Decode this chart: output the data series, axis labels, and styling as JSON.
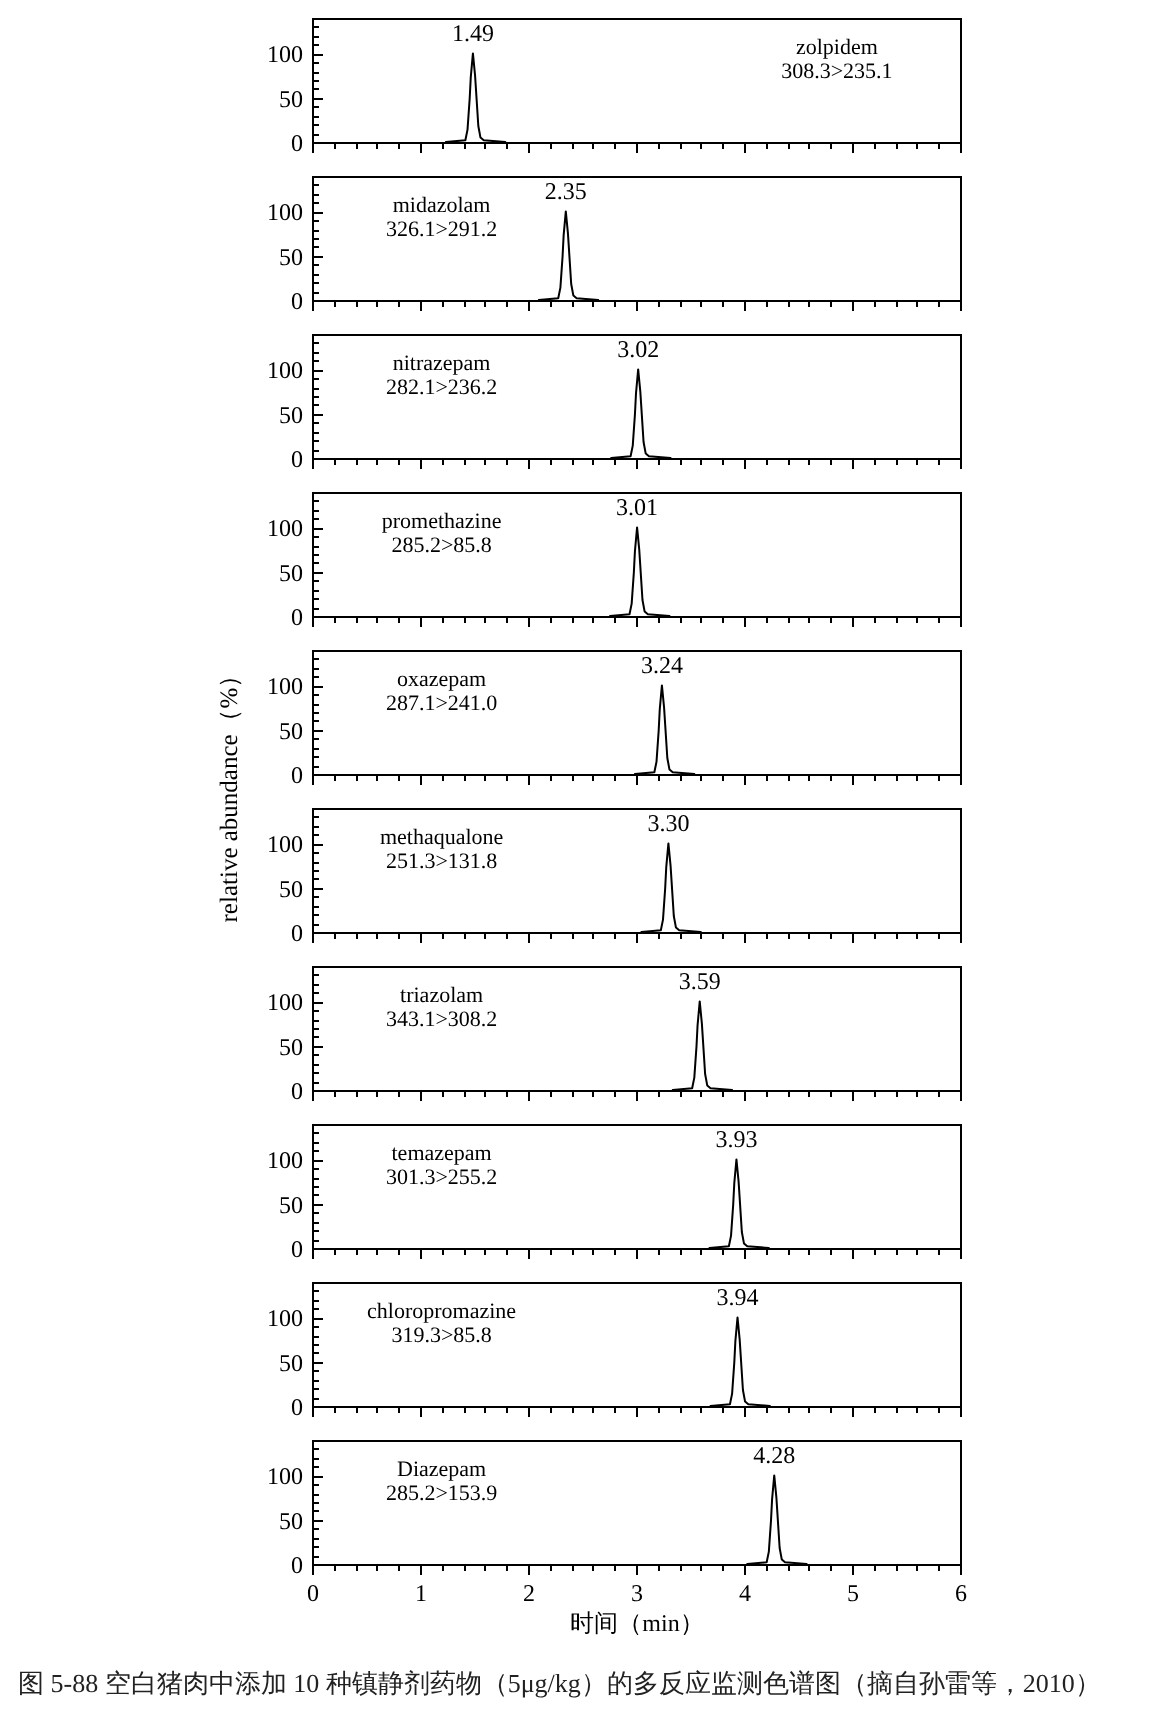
{
  "chart_data": [
    {
      "type": "line",
      "x": [
        1.24,
        1.42,
        1.44,
        1.46,
        1.47,
        1.49,
        1.51,
        1.52,
        1.54,
        1.56,
        1.59,
        1.79
      ],
      "series": [
        {
          "name": "zolpidem 308.3>235.1",
          "color": "#000000",
          "values": [
            0,
            2,
            14,
            49,
            73,
            100,
            75,
            56,
            18,
            5,
            2,
            0
          ]
        }
      ],
      "xlim": [
        0,
        6
      ],
      "ylim": [
        0,
        140
      ],
      "xticks": [
        0,
        {
          "value": 0.2,
          "label": null
        },
        {
          "value": 0.4,
          "label": null
        },
        {
          "value": 0.6,
          "label": null
        },
        {
          "value": 0.8,
          "label": null
        },
        1,
        {
          "value": 1.2,
          "label": null
        },
        {
          "value": 1.4,
          "label": null
        },
        {
          "value": 1.6,
          "label": null
        },
        {
          "value": 1.8,
          "label": null
        },
        2,
        {
          "value": 2.2,
          "label": null
        },
        {
          "value": 2.4,
          "label": null
        },
        {
          "value": 2.6,
          "label": null
        },
        {
          "value": 2.8,
          "label": null
        },
        3,
        {
          "value": 3.2,
          "label": null
        },
        {
          "value": 3.4,
          "label": null
        },
        {
          "value": 3.6,
          "label": null
        },
        {
          "value": 3.8,
          "label": null
        },
        4,
        {
          "value": 4.2,
          "label": null
        },
        {
          "value": 4.4,
          "label": null
        },
        {
          "value": 4.6,
          "label": null
        },
        {
          "value": 4.8,
          "label": null
        },
        5,
        {
          "value": 5.2,
          "label": null
        },
        {
          "value": 5.4,
          "label": null
        },
        {
          "value": 5.6,
          "label": null
        },
        {
          "value": 5.8,
          "label": null
        },
        6
      ],
      "yticks": [
        0,
        {
          "value": 10,
          "label": null
        },
        {
          "value": 20,
          "label": null
        },
        {
          "value": 30,
          "label": null
        },
        {
          "value": 40,
          "label": null
        },
        50,
        {
          "value": 60,
          "label": null
        },
        {
          "value": 70,
          "label": null
        },
        {
          "value": 80,
          "label": null
        },
        {
          "value": 90,
          "label": null
        },
        100,
        {
          "value": 110,
          "label": null
        },
        {
          "value": 120,
          "label": null
        },
        {
          "value": 130,
          "label": null
        }
      ],
      "tick_labels": "y",
      "legend": "top right",
      "annotations": [
        {
          "text": "1.49",
          "x": 1.49,
          "y": 100
        }
      ]
    },
    {
      "type": "line",
      "x": [
        2.1,
        2.28,
        2.3,
        2.32,
        2.33,
        2.35,
        2.37,
        2.38,
        2.4,
        2.42,
        2.45,
        2.65
      ],
      "series": [
        {
          "name": "midazolam 326.1>291.2",
          "color": "#000000",
          "values": [
            0,
            2,
            14,
            49,
            73,
            100,
            75,
            56,
            18,
            5,
            2,
            0
          ]
        }
      ],
      "xlim": [
        0,
        6
      ],
      "ylim": [
        0,
        140
      ],
      "xticks": [
        0,
        {
          "value": 0.2,
          "label": null
        },
        {
          "value": 0.4,
          "label": null
        },
        {
          "value": 0.6,
          "label": null
        },
        {
          "value": 0.8,
          "label": null
        },
        1,
        {
          "value": 1.2,
          "label": null
        },
        {
          "value": 1.4,
          "label": null
        },
        {
          "value": 1.6,
          "label": null
        },
        {
          "value": 1.8,
          "label": null
        },
        2,
        {
          "value": 2.2,
          "label": null
        },
        {
          "value": 2.4,
          "label": null
        },
        {
          "value": 2.6,
          "label": null
        },
        {
          "value": 2.8,
          "label": null
        },
        3,
        {
          "value": 3.2,
          "label": null
        },
        {
          "value": 3.4,
          "label": null
        },
        {
          "value": 3.6,
          "label": null
        },
        {
          "value": 3.8,
          "label": null
        },
        4,
        {
          "value": 4.2,
          "label": null
        },
        {
          "value": 4.4,
          "label": null
        },
        {
          "value": 4.6,
          "label": null
        },
        {
          "value": 4.8,
          "label": null
        },
        5,
        {
          "value": 5.2,
          "label": null
        },
        {
          "value": 5.4,
          "label": null
        },
        {
          "value": 5.6,
          "label": null
        },
        {
          "value": 5.8,
          "label": null
        },
        6
      ],
      "yticks": [
        0,
        {
          "value": 10,
          "label": null
        },
        {
          "value": 20,
          "label": null
        },
        {
          "value": 30,
          "label": null
        },
        {
          "value": 40,
          "label": null
        },
        50,
        {
          "value": 60,
          "label": null
        },
        {
          "value": 70,
          "label": null
        },
        {
          "value": 80,
          "label": null
        },
        {
          "value": 90,
          "label": null
        },
        100,
        {
          "value": 110,
          "label": null
        },
        {
          "value": 120,
          "label": null
        },
        {
          "value": 130,
          "label": null
        }
      ],
      "tick_labels": "y",
      "legend": "top left",
      "annotations": [
        {
          "text": "2.35",
          "x": 2.35,
          "y": 100
        }
      ]
    },
    {
      "type": "line",
      "x": [
        2.77,
        2.95,
        2.97,
        2.99,
        3.0,
        3.02,
        3.04,
        3.05,
        3.07,
        3.09,
        3.12,
        3.32
      ],
      "series": [
        {
          "name": "nitrazepam 282.1>236.2",
          "color": "#000000",
          "values": [
            0,
            2,
            14,
            49,
            73,
            100,
            75,
            56,
            18,
            5,
            2,
            0
          ]
        }
      ],
      "xlim": [
        0,
        6
      ],
      "ylim": [
        0,
        140
      ],
      "xticks": [
        0,
        {
          "value": 0.2,
          "label": null
        },
        {
          "value": 0.4,
          "label": null
        },
        {
          "value": 0.6,
          "label": null
        },
        {
          "value": 0.8,
          "label": null
        },
        1,
        {
          "value": 1.2,
          "label": null
        },
        {
          "value": 1.4,
          "label": null
        },
        {
          "value": 1.6,
          "label": null
        },
        {
          "value": 1.8,
          "label": null
        },
        2,
        {
          "value": 2.2,
          "label": null
        },
        {
          "value": 2.4,
          "label": null
        },
        {
          "value": 2.6,
          "label": null
        },
        {
          "value": 2.8,
          "label": null
        },
        3,
        {
          "value": 3.2,
          "label": null
        },
        {
          "value": 3.4,
          "label": null
        },
        {
          "value": 3.6,
          "label": null
        },
        {
          "value": 3.8,
          "label": null
        },
        4,
        {
          "value": 4.2,
          "label": null
        },
        {
          "value": 4.4,
          "label": null
        },
        {
          "value": 4.6,
          "label": null
        },
        {
          "value": 4.8,
          "label": null
        },
        5,
        {
          "value": 5.2,
          "label": null
        },
        {
          "value": 5.4,
          "label": null
        },
        {
          "value": 5.6,
          "label": null
        },
        {
          "value": 5.8,
          "label": null
        },
        6
      ],
      "yticks": [
        0,
        {
          "value": 10,
          "label": null
        },
        {
          "value": 20,
          "label": null
        },
        {
          "value": 30,
          "label": null
        },
        {
          "value": 40,
          "label": null
        },
        50,
        {
          "value": 60,
          "label": null
        },
        {
          "value": 70,
          "label": null
        },
        {
          "value": 80,
          "label": null
        },
        {
          "value": 90,
          "label": null
        },
        100,
        {
          "value": 110,
          "label": null
        },
        {
          "value": 120,
          "label": null
        },
        {
          "value": 130,
          "label": null
        }
      ],
      "tick_labels": "y",
      "legend": "top left",
      "annotations": [
        {
          "text": "3.02",
          "x": 3.02,
          "y": 100
        }
      ]
    },
    {
      "type": "line",
      "x": [
        2.76,
        2.94,
        2.96,
        2.98,
        2.99,
        3.01,
        3.03,
        3.04,
        3.06,
        3.08,
        3.11,
        3.31
      ],
      "series": [
        {
          "name": "promethazine 285.2>85.8",
          "color": "#000000",
          "values": [
            0,
            2,
            14,
            49,
            73,
            100,
            75,
            56,
            18,
            5,
            2,
            0
          ]
        }
      ],
      "xlim": [
        0,
        6
      ],
      "ylim": [
        0,
        140
      ],
      "xticks": [
        0,
        {
          "value": 0.2,
          "label": null
        },
        {
          "value": 0.4,
          "label": null
        },
        {
          "value": 0.6,
          "label": null
        },
        {
          "value": 0.8,
          "label": null
        },
        1,
        {
          "value": 1.2,
          "label": null
        },
        {
          "value": 1.4,
          "label": null
        },
        {
          "value": 1.6,
          "label": null
        },
        {
          "value": 1.8,
          "label": null
        },
        2,
        {
          "value": 2.2,
          "label": null
        },
        {
          "value": 2.4,
          "label": null
        },
        {
          "value": 2.6,
          "label": null
        },
        {
          "value": 2.8,
          "label": null
        },
        3,
        {
          "value": 3.2,
          "label": null
        },
        {
          "value": 3.4,
          "label": null
        },
        {
          "value": 3.6,
          "label": null
        },
        {
          "value": 3.8,
          "label": null
        },
        4,
        {
          "value": 4.2,
          "label": null
        },
        {
          "value": 4.4,
          "label": null
        },
        {
          "value": 4.6,
          "label": null
        },
        {
          "value": 4.8,
          "label": null
        },
        5,
        {
          "value": 5.2,
          "label": null
        },
        {
          "value": 5.4,
          "label": null
        },
        {
          "value": 5.6,
          "label": null
        },
        {
          "value": 5.8,
          "label": null
        },
        6
      ],
      "yticks": [
        0,
        {
          "value": 10,
          "label": null
        },
        {
          "value": 20,
          "label": null
        },
        {
          "value": 30,
          "label": null
        },
        {
          "value": 40,
          "label": null
        },
        50,
        {
          "value": 60,
          "label": null
        },
        {
          "value": 70,
          "label": null
        },
        {
          "value": 80,
          "label": null
        },
        {
          "value": 90,
          "label": null
        },
        100,
        {
          "value": 110,
          "label": null
        },
        {
          "value": 120,
          "label": null
        },
        {
          "value": 130,
          "label": null
        }
      ],
      "tick_labels": "y",
      "legend": "top left",
      "annotations": [
        {
          "text": "3.01",
          "x": 3.01,
          "y": 100
        }
      ]
    },
    {
      "type": "line",
      "x": [
        2.99,
        3.17,
        3.19,
        3.21,
        3.22,
        3.24,
        3.26,
        3.27,
        3.29,
        3.31,
        3.34,
        3.54
      ],
      "series": [
        {
          "name": "oxazepam 287.1>241.0",
          "color": "#000000",
          "values": [
            0,
            2,
            14,
            49,
            73,
            100,
            75,
            56,
            18,
            5,
            2,
            0
          ]
        }
      ],
      "xlim": [
        0,
        6
      ],
      "ylim": [
        0,
        140
      ],
      "xticks": [
        0,
        {
          "value": 0.2,
          "label": null
        },
        {
          "value": 0.4,
          "label": null
        },
        {
          "value": 0.6,
          "label": null
        },
        {
          "value": 0.8,
          "label": null
        },
        1,
        {
          "value": 1.2,
          "label": null
        },
        {
          "value": 1.4,
          "label": null
        },
        {
          "value": 1.6,
          "label": null
        },
        {
          "value": 1.8,
          "label": null
        },
        2,
        {
          "value": 2.2,
          "label": null
        },
        {
          "value": 2.4,
          "label": null
        },
        {
          "value": 2.6,
          "label": null
        },
        {
          "value": 2.8,
          "label": null
        },
        3,
        {
          "value": 3.2,
          "label": null
        },
        {
          "value": 3.4,
          "label": null
        },
        {
          "value": 3.6,
          "label": null
        },
        {
          "value": 3.8,
          "label": null
        },
        4,
        {
          "value": 4.2,
          "label": null
        },
        {
          "value": 4.4,
          "label": null
        },
        {
          "value": 4.6,
          "label": null
        },
        {
          "value": 4.8,
          "label": null
        },
        5,
        {
          "value": 5.2,
          "label": null
        },
        {
          "value": 5.4,
          "label": null
        },
        {
          "value": 5.6,
          "label": null
        },
        {
          "value": 5.8,
          "label": null
        },
        6
      ],
      "yticks": [
        0,
        {
          "value": 10,
          "label": null
        },
        {
          "value": 20,
          "label": null
        },
        {
          "value": 30,
          "label": null
        },
        {
          "value": 40,
          "label": null
        },
        50,
        {
          "value": 60,
          "label": null
        },
        {
          "value": 70,
          "label": null
        },
        {
          "value": 80,
          "label": null
        },
        {
          "value": 90,
          "label": null
        },
        100,
        {
          "value": 110,
          "label": null
        },
        {
          "value": 120,
          "label": null
        },
        {
          "value": 130,
          "label": null
        }
      ],
      "tick_labels": "y",
      "legend": "top left",
      "ylabel": "relative abundance（%）",
      "annotations": [
        {
          "text": "3.24",
          "x": 3.24,
          "y": 100
        }
      ]
    },
    {
      "type": "line",
      "x": [
        3.05,
        3.23,
        3.25,
        3.27,
        3.28,
        3.3,
        3.32,
        3.33,
        3.35,
        3.37,
        3.4,
        3.6
      ],
      "series": [
        {
          "name": "methaqualone 251.3>131.8",
          "color": "#000000",
          "values": [
            0,
            2,
            14,
            49,
            73,
            100,
            75,
            56,
            18,
            5,
            2,
            0
          ]
        }
      ],
      "xlim": [
        0,
        6
      ],
      "ylim": [
        0,
        140
      ],
      "xticks": [
        0,
        {
          "value": 0.2,
          "label": null
        },
        {
          "value": 0.4,
          "label": null
        },
        {
          "value": 0.6,
          "label": null
        },
        {
          "value": 0.8,
          "label": null
        },
        1,
        {
          "value": 1.2,
          "label": null
        },
        {
          "value": 1.4,
          "label": null
        },
        {
          "value": 1.6,
          "label": null
        },
        {
          "value": 1.8,
          "label": null
        },
        2,
        {
          "value": 2.2,
          "label": null
        },
        {
          "value": 2.4,
          "label": null
        },
        {
          "value": 2.6,
          "label": null
        },
        {
          "value": 2.8,
          "label": null
        },
        3,
        {
          "value": 3.2,
          "label": null
        },
        {
          "value": 3.4,
          "label": null
        },
        {
          "value": 3.6,
          "label": null
        },
        {
          "value": 3.8,
          "label": null
        },
        4,
        {
          "value": 4.2,
          "label": null
        },
        {
          "value": 4.4,
          "label": null
        },
        {
          "value": 4.6,
          "label": null
        },
        {
          "value": 4.8,
          "label": null
        },
        5,
        {
          "value": 5.2,
          "label": null
        },
        {
          "value": 5.4,
          "label": null
        },
        {
          "value": 5.6,
          "label": null
        },
        {
          "value": 5.8,
          "label": null
        },
        6
      ],
      "yticks": [
        0,
        {
          "value": 10,
          "label": null
        },
        {
          "value": 20,
          "label": null
        },
        {
          "value": 30,
          "label": null
        },
        {
          "value": 40,
          "label": null
        },
        50,
        {
          "value": 60,
          "label": null
        },
        {
          "value": 70,
          "label": null
        },
        {
          "value": 80,
          "label": null
        },
        {
          "value": 90,
          "label": null
        },
        100,
        {
          "value": 110,
          "label": null
        },
        {
          "value": 120,
          "label": null
        },
        {
          "value": 130,
          "label": null
        }
      ],
      "tick_labels": "y",
      "legend": "top left",
      "annotations": [
        {
          "text": "3.30",
          "x": 3.3,
          "y": 100
        }
      ]
    },
    {
      "type": "line",
      "x": [
        3.34,
        3.52,
        3.54,
        3.56,
        3.57,
        3.59,
        3.61,
        3.62,
        3.64,
        3.66,
        3.69,
        3.89
      ],
      "series": [
        {
          "name": "triazolam 343.1>308.2",
          "color": "#000000",
          "values": [
            0,
            2,
            14,
            49,
            73,
            100,
            75,
            56,
            18,
            5,
            2,
            0
          ]
        }
      ],
      "xlim": [
        0,
        6
      ],
      "ylim": [
        0,
        140
      ],
      "xticks": [
        0,
        {
          "value": 0.2,
          "label": null
        },
        {
          "value": 0.4,
          "label": null
        },
        {
          "value": 0.6,
          "label": null
        },
        {
          "value": 0.8,
          "label": null
        },
        1,
        {
          "value": 1.2,
          "label": null
        },
        {
          "value": 1.4,
          "label": null
        },
        {
          "value": 1.6,
          "label": null
        },
        {
          "value": 1.8,
          "label": null
        },
        2,
        {
          "value": 2.2,
          "label": null
        },
        {
          "value": 2.4,
          "label": null
        },
        {
          "value": 2.6,
          "label": null
        },
        {
          "value": 2.8,
          "label": null
        },
        3,
        {
          "value": 3.2,
          "label": null
        },
        {
          "value": 3.4,
          "label": null
        },
        {
          "value": 3.6,
          "label": null
        },
        {
          "value": 3.8,
          "label": null
        },
        4,
        {
          "value": 4.2,
          "label": null
        },
        {
          "value": 4.4,
          "label": null
        },
        {
          "value": 4.6,
          "label": null
        },
        {
          "value": 4.8,
          "label": null
        },
        5,
        {
          "value": 5.2,
          "label": null
        },
        {
          "value": 5.4,
          "label": null
        },
        {
          "value": 5.6,
          "label": null
        },
        {
          "value": 5.8,
          "label": null
        },
        6
      ],
      "yticks": [
        0,
        {
          "value": 10,
          "label": null
        },
        {
          "value": 20,
          "label": null
        },
        {
          "value": 30,
          "label": null
        },
        {
          "value": 40,
          "label": null
        },
        50,
        {
          "value": 60,
          "label": null
        },
        {
          "value": 70,
          "label": null
        },
        {
          "value": 80,
          "label": null
        },
        {
          "value": 90,
          "label": null
        },
        100,
        {
          "value": 110,
          "label": null
        },
        {
          "value": 120,
          "label": null
        },
        {
          "value": 130,
          "label": null
        }
      ],
      "tick_labels": "y",
      "legend": "top left",
      "annotations": [
        {
          "text": "3.59",
          "x": 3.59,
          "y": 100
        }
      ]
    },
    {
      "type": "line",
      "x": [
        3.68,
        3.86,
        3.88,
        3.9,
        3.91,
        3.93,
        3.95,
        3.96,
        3.98,
        4.0,
        4.03,
        4.23
      ],
      "series": [
        {
          "name": "temazepam 301.3>255.2",
          "color": "#000000",
          "values": [
            0,
            2,
            14,
            49,
            73,
            100,
            75,
            56,
            18,
            5,
            2,
            0
          ]
        }
      ],
      "xlim": [
        0,
        6
      ],
      "ylim": [
        0,
        140
      ],
      "xticks": [
        0,
        {
          "value": 0.2,
          "label": null
        },
        {
          "value": 0.4,
          "label": null
        },
        {
          "value": 0.6,
          "label": null
        },
        {
          "value": 0.8,
          "label": null
        },
        1,
        {
          "value": 1.2,
          "label": null
        },
        {
          "value": 1.4,
          "label": null
        },
        {
          "value": 1.6,
          "label": null
        },
        {
          "value": 1.8,
          "label": null
        },
        2,
        {
          "value": 2.2,
          "label": null
        },
        {
          "value": 2.4,
          "label": null
        },
        {
          "value": 2.6,
          "label": null
        },
        {
          "value": 2.8,
          "label": null
        },
        3,
        {
          "value": 3.2,
          "label": null
        },
        {
          "value": 3.4,
          "label": null
        },
        {
          "value": 3.6,
          "label": null
        },
        {
          "value": 3.8,
          "label": null
        },
        4,
        {
          "value": 4.2,
          "label": null
        },
        {
          "value": 4.4,
          "label": null
        },
        {
          "value": 4.6,
          "label": null
        },
        {
          "value": 4.8,
          "label": null
        },
        5,
        {
          "value": 5.2,
          "label": null
        },
        {
          "value": 5.4,
          "label": null
        },
        {
          "value": 5.6,
          "label": null
        },
        {
          "value": 5.8,
          "label": null
        },
        6
      ],
      "yticks": [
        0,
        {
          "value": 10,
          "label": null
        },
        {
          "value": 20,
          "label": null
        },
        {
          "value": 30,
          "label": null
        },
        {
          "value": 40,
          "label": null
        },
        50,
        {
          "value": 60,
          "label": null
        },
        {
          "value": 70,
          "label": null
        },
        {
          "value": 80,
          "label": null
        },
        {
          "value": 90,
          "label": null
        },
        100,
        {
          "value": 110,
          "label": null
        },
        {
          "value": 120,
          "label": null
        },
        {
          "value": 130,
          "label": null
        }
      ],
      "tick_labels": "y",
      "legend": "top left",
      "annotations": [
        {
          "text": "3.93",
          "x": 3.93,
          "y": 100
        }
      ]
    },
    {
      "type": "line",
      "x": [
        3.69,
        3.87,
        3.89,
        3.91,
        3.92,
        3.94,
        3.96,
        3.97,
        3.99,
        4.01,
        4.04,
        4.24
      ],
      "series": [
        {
          "name": "chloropromazine 319.3>85.8",
          "color": "#000000",
          "values": [
            0,
            2,
            14,
            49,
            73,
            100,
            75,
            56,
            18,
            5,
            2,
            0
          ]
        }
      ],
      "xlim": [
        0,
        6
      ],
      "ylim": [
        0,
        140
      ],
      "xticks": [
        0,
        {
          "value": 0.2,
          "label": null
        },
        {
          "value": 0.4,
          "label": null
        },
        {
          "value": 0.6,
          "label": null
        },
        {
          "value": 0.8,
          "label": null
        },
        1,
        {
          "value": 1.2,
          "label": null
        },
        {
          "value": 1.4,
          "label": null
        },
        {
          "value": 1.6,
          "label": null
        },
        {
          "value": 1.8,
          "label": null
        },
        2,
        {
          "value": 2.2,
          "label": null
        },
        {
          "value": 2.4,
          "label": null
        },
        {
          "value": 2.6,
          "label": null
        },
        {
          "value": 2.8,
          "label": null
        },
        3,
        {
          "value": 3.2,
          "label": null
        },
        {
          "value": 3.4,
          "label": null
        },
        {
          "value": 3.6,
          "label": null
        },
        {
          "value": 3.8,
          "label": null
        },
        4,
        {
          "value": 4.2,
          "label": null
        },
        {
          "value": 4.4,
          "label": null
        },
        {
          "value": 4.6,
          "label": null
        },
        {
          "value": 4.8,
          "label": null
        },
        5,
        {
          "value": 5.2,
          "label": null
        },
        {
          "value": 5.4,
          "label": null
        },
        {
          "value": 5.6,
          "label": null
        },
        {
          "value": 5.8,
          "label": null
        },
        6
      ],
      "yticks": [
        0,
        {
          "value": 10,
          "label": null
        },
        {
          "value": 20,
          "label": null
        },
        {
          "value": 30,
          "label": null
        },
        {
          "value": 40,
          "label": null
        },
        50,
        {
          "value": 60,
          "label": null
        },
        {
          "value": 70,
          "label": null
        },
        {
          "value": 80,
          "label": null
        },
        {
          "value": 90,
          "label": null
        },
        100,
        {
          "value": 110,
          "label": null
        },
        {
          "value": 120,
          "label": null
        },
        {
          "value": 130,
          "label": null
        }
      ],
      "tick_labels": "y",
      "legend": "top left",
      "annotations": [
        {
          "text": "3.94",
          "x": 3.94,
          "y": 100
        }
      ]
    },
    {
      "type": "line",
      "x": [
        4.03,
        4.21,
        4.23,
        4.25,
        4.26,
        4.28,
        4.3,
        4.31,
        4.33,
        4.35,
        4.38,
        4.58
      ],
      "series": [
        {
          "name": "Diazepam 285.2>153.9",
          "color": "#000000",
          "values": [
            0,
            2,
            14,
            49,
            73,
            100,
            75,
            56,
            18,
            5,
            2,
            0
          ]
        }
      ],
      "xlim": [
        0,
        6
      ],
      "ylim": [
        0,
        140
      ],
      "xticks": [
        0,
        {
          "value": 0.2,
          "label": null
        },
        {
          "value": 0.4,
          "label": null
        },
        {
          "value": 0.6,
          "label": null
        },
        {
          "value": 0.8,
          "label": null
        },
        1,
        {
          "value": 1.2,
          "label": null
        },
        {
          "value": 1.4,
          "label": null
        },
        {
          "value": 1.6,
          "label": null
        },
        {
          "value": 1.8,
          "label": null
        },
        2,
        {
          "value": 2.2,
          "label": null
        },
        {
          "value": 2.4,
          "label": null
        },
        {
          "value": 2.6,
          "label": null
        },
        {
          "value": 2.8,
          "label": null
        },
        3,
        {
          "value": 3.2,
          "label": null
        },
        {
          "value": 3.4,
          "label": null
        },
        {
          "value": 3.6,
          "label": null
        },
        {
          "value": 3.8,
          "label": null
        },
        4,
        {
          "value": 4.2,
          "label": null
        },
        {
          "value": 4.4,
          "label": null
        },
        {
          "value": 4.6,
          "label": null
        },
        {
          "value": 4.8,
          "label": null
        },
        5,
        {
          "value": 5.2,
          "label": null
        },
        {
          "value": 5.4,
          "label": null
        },
        {
          "value": 5.6,
          "label": null
        },
        {
          "value": 5.8,
          "label": null
        },
        6
      ],
      "yticks": [
        0,
        {
          "value": 10,
          "label": null
        },
        {
          "value": 20,
          "label": null
        },
        {
          "value": 30,
          "label": null
        },
        {
          "value": 40,
          "label": null
        },
        50,
        {
          "value": 60,
          "label": null
        },
        {
          "value": 70,
          "label": null
        },
        {
          "value": 80,
          "label": null
        },
        {
          "value": 90,
          "label": null
        },
        100,
        {
          "value": 110,
          "label": null
        },
        {
          "value": 120,
          "label": null
        },
        {
          "value": 130,
          "label": null
        }
      ],
      "legend": "top left",
      "xlabel": "时间（min）",
      "annotations": [
        {
          "text": "4.28",
          "x": 4.28,
          "y": 100
        },
        "图 5-88  空白猪肉中添加 10 种镇静剂药物（5μg/kg）的多反应监测色谱图（摘自孙雷等，2010）"
      ]
    }
  ]
}
